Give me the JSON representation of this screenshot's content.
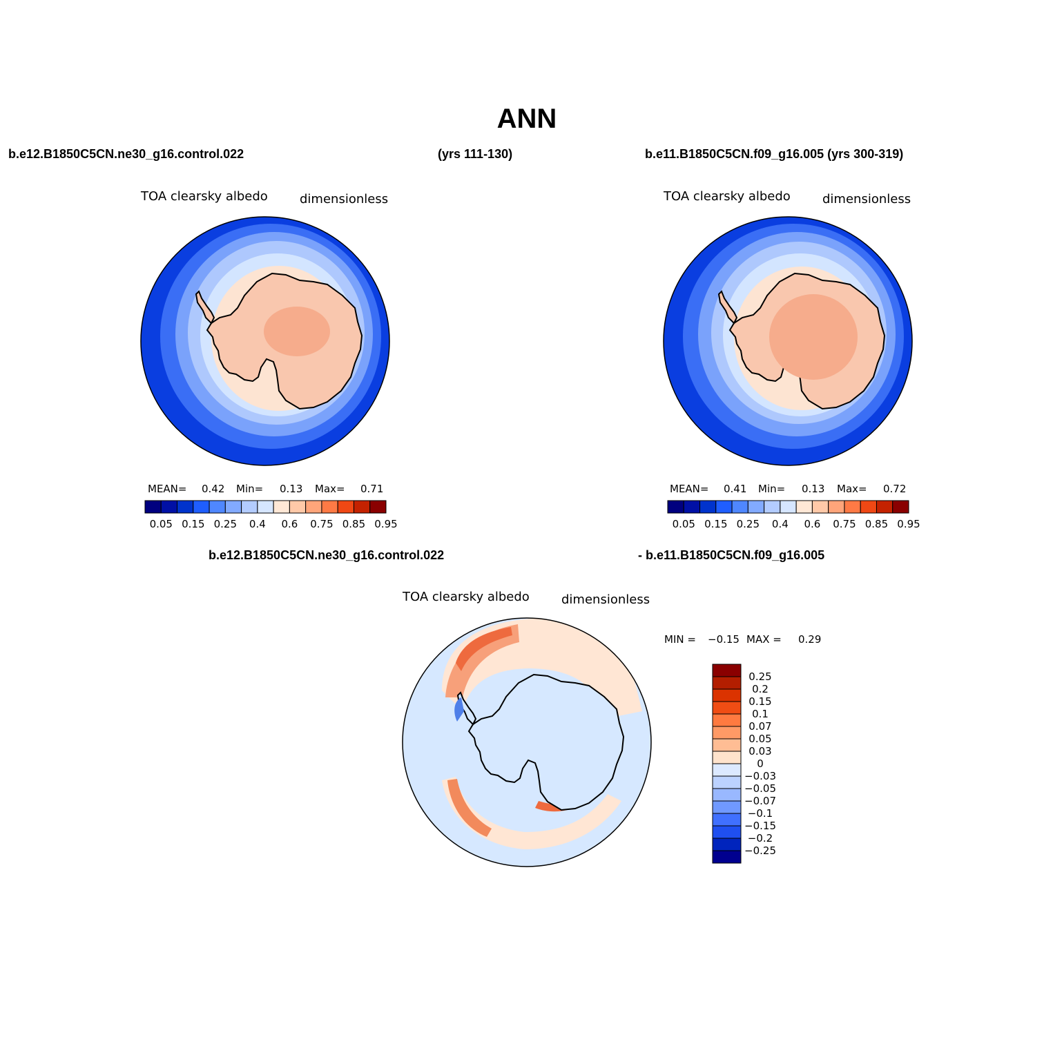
{
  "page": {
    "title": "ANN",
    "left_case": "b.e12.B1850C5CN.ne30_g16.control.022",
    "left_years": "(yrs 111-130)",
    "right_case_years": "b.e11.B1850C5CN.f09_g16.005 (yrs 300-319)",
    "diff_left": "b.e12.B1850C5CN.ne30_g16.control.022",
    "diff_right": "- b.e11.B1850C5CN.f09_g16.005"
  },
  "maps": [
    {
      "variable": "TOA clearsky albedo",
      "units": "dimensionless",
      "stats": {
        "mean_label": "MEAN=",
        "mean": "0.42",
        "min_label": "Min=",
        "min": "0.13",
        "max_label": "Max=",
        "max": "0.71"
      }
    },
    {
      "variable": "TOA clearsky albedo",
      "units": "dimensionless",
      "stats": {
        "mean_label": "MEAN=",
        "mean": "0.41",
        "min_label": "Min=",
        "min": "0.13",
        "max_label": "Max=",
        "max": "0.72"
      }
    },
    {
      "variable": "TOA clearsky albedo",
      "units": "dimensionless",
      "stats": {
        "min_label": "MIN =",
        "min": "-0.15",
        "max_label": "MAX =",
        "max": "0.29"
      }
    }
  ],
  "colorbar_abs": {
    "colors": [
      "#00007f",
      "#0010a5",
      "#0033cc",
      "#1f5eff",
      "#4f87ff",
      "#82aaff",
      "#b3ccff",
      "#d6e6ff",
      "#ffe8d6",
      "#ffc9a8",
      "#ffa57a",
      "#ff7a45",
      "#f04814",
      "#c42200",
      "#8a0000"
    ],
    "labels": [
      "0.05",
      "0.15",
      "0.25",
      "0.4",
      "0.6",
      "0.75",
      "0.85",
      "0.95"
    ]
  },
  "colorbar_diff": {
    "colors": [
      "#8a0000",
      "#b31e00",
      "#db3300",
      "#f04d14",
      "#ff7a40",
      "#ff9a66",
      "#ffbd94",
      "#ffe3cc",
      "#dce9ff",
      "#bcd2ff",
      "#99b8ff",
      "#7099ff",
      "#4070ff",
      "#1f4ff0",
      "#0024bd",
      "#00008f"
    ],
    "labels": [
      "0.25",
      "0.2",
      "0.15",
      "0.1",
      "0.07",
      "0.05",
      "0.03",
      "0",
      "-0.03",
      "-0.05",
      "-0.07",
      "-0.1",
      "-0.15",
      "-0.2",
      "-0.25"
    ]
  },
  "map_fills": {
    "ocean_outer": "#0a3ee0",
    "ocean_band2": "#3a6ef5",
    "ocean_band3": "#7aa2fb",
    "ocean_band4": "#aec8fd",
    "ocean_band5": "#d3e5ff",
    "coast_band": "#fde4d2",
    "land": "#f9c7ae",
    "land_high": "#f6ac8c",
    "diff_bg": "#d6e8ff",
    "diff_pos1": "#ffe6d4",
    "diff_pos2": "#f7a07a",
    "diff_pos3": "#ee6a3e"
  }
}
